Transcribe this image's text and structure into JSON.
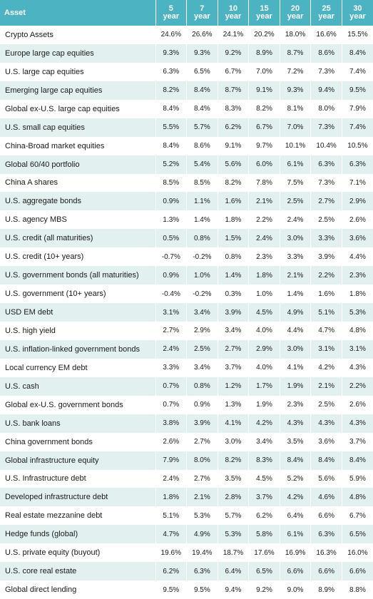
{
  "header": {
    "asset": "Asset",
    "columns": [
      {
        "num": "5",
        "unit": "year"
      },
      {
        "num": "7",
        "unit": "year"
      },
      {
        "num": "10",
        "unit": "year"
      },
      {
        "num": "15",
        "unit": "year"
      },
      {
        "num": "20",
        "unit": "year"
      },
      {
        "num": "25",
        "unit": "year"
      },
      {
        "num": "30",
        "unit": "year"
      }
    ]
  },
  "rows": [
    {
      "asset": "Crypto Assets",
      "values": [
        "24.6%",
        "26.6%",
        "24.1%",
        "20.2%",
        "18.0%",
        "16.6%",
        "15.5%"
      ]
    },
    {
      "asset": "Europe large cap equities",
      "values": [
        "9.3%",
        "9.3%",
        "9.2%",
        "8.9%",
        "8.7%",
        "8.6%",
        "8.4%"
      ]
    },
    {
      "asset": "U.S. large cap equities",
      "values": [
        "6.3%",
        "6.5%",
        "6.7%",
        "7.0%",
        "7.2%",
        "7.3%",
        "7.4%"
      ]
    },
    {
      "asset": "Emerging large cap equities",
      "values": [
        "8.2%",
        "8.4%",
        "8.7%",
        "9.1%",
        "9.3%",
        "9.4%",
        "9.5%"
      ]
    },
    {
      "asset": "Global ex-U.S. large cap equities",
      "values": [
        "8.4%",
        "8.4%",
        "8.3%",
        "8.2%",
        "8.1%",
        "8.0%",
        "7.9%"
      ]
    },
    {
      "asset": "U.S. small cap equities",
      "values": [
        "5.5%",
        "5.7%",
        "6.2%",
        "6.7%",
        "7.0%",
        "7.3%",
        "7.4%"
      ]
    },
    {
      "asset": "China-Broad market equities",
      "values": [
        "8.4%",
        "8.6%",
        "9.1%",
        "9.7%",
        "10.1%",
        "10.4%",
        "10.5%"
      ]
    },
    {
      "asset": "Global 60/40 portfolio",
      "values": [
        "5.2%",
        "5.4%",
        "5.6%",
        "6.0%",
        "6.1%",
        "6.3%",
        "6.3%"
      ]
    },
    {
      "asset": "China A shares",
      "values": [
        "8.5%",
        "8.5%",
        "8.2%",
        "7.8%",
        "7.5%",
        "7.3%",
        "7.1%"
      ]
    },
    {
      "asset": "U.S. aggregate bonds",
      "values": [
        "0.9%",
        "1.1%",
        "1.6%",
        "2.1%",
        "2.5%",
        "2.7%",
        "2.9%"
      ]
    },
    {
      "asset": "U.S. agency MBS",
      "values": [
        "1.3%",
        "1.4%",
        "1.8%",
        "2.2%",
        "2.4%",
        "2.5%",
        "2.6%"
      ]
    },
    {
      "asset": "U.S. credit (all maturities)",
      "values": [
        "0.5%",
        "0.8%",
        "1.5%",
        "2.4%",
        "3.0%",
        "3.3%",
        "3.6%"
      ]
    },
    {
      "asset": "U.S. credit (10+ years)",
      "values": [
        "-0.7%",
        "-0.2%",
        "0.8%",
        "2.3%",
        "3.3%",
        "3.9%",
        "4.4%"
      ]
    },
    {
      "asset": "U.S. government bonds (all maturities)",
      "values": [
        "0.9%",
        "1.0%",
        "1.4%",
        "1.8%",
        "2.1%",
        "2.2%",
        "2.3%"
      ]
    },
    {
      "asset": "U.S. government (10+ years)",
      "values": [
        "-0.4%",
        "-0.2%",
        "0.3%",
        "1.0%",
        "1.4%",
        "1.6%",
        "1.8%"
      ]
    },
    {
      "asset": "USD EM debt",
      "values": [
        "3.1%",
        "3.4%",
        "3.9%",
        "4.5%",
        "4.9%",
        "5.1%",
        "5.3%"
      ]
    },
    {
      "asset": "U.S. high yield",
      "values": [
        "2.7%",
        "2.9%",
        "3.4%",
        "4.0%",
        "4.4%",
        "4.7%",
        "4.8%"
      ]
    },
    {
      "asset": "U.S. inflation-linked government bonds",
      "values": [
        "2.4%",
        "2.5%",
        "2.7%",
        "2.9%",
        "3.0%",
        "3.1%",
        "3.1%"
      ]
    },
    {
      "asset": "Local currency EM debt",
      "values": [
        "3.3%",
        "3.4%",
        "3.7%",
        "4.0%",
        "4.1%",
        "4.2%",
        "4.3%"
      ]
    },
    {
      "asset": "U.S. cash",
      "values": [
        "0.7%",
        "0.8%",
        "1.2%",
        "1.7%",
        "1.9%",
        "2.1%",
        "2.2%"
      ]
    },
    {
      "asset": "Global ex-U.S. government bonds",
      "values": [
        "0.7%",
        "0.9%",
        "1.3%",
        "1.9%",
        "2.3%",
        "2.5%",
        "2.6%"
      ]
    },
    {
      "asset": "U.S. bank loans",
      "values": [
        "3.8%",
        "3.9%",
        "4.1%",
        "4.2%",
        "4.3%",
        "4.3%",
        "4.3%"
      ]
    },
    {
      "asset": "China government bonds",
      "values": [
        "2.6%",
        "2.7%",
        "3.0%",
        "3.4%",
        "3.5%",
        "3.6%",
        "3.7%"
      ]
    },
    {
      "asset": "Global infrastructure equity",
      "values": [
        "7.9%",
        "8.0%",
        "8.2%",
        "8.3%",
        "8.4%",
        "8.4%",
        "8.4%"
      ]
    },
    {
      "asset": "U.S. Infrastructure debt",
      "values": [
        "2.4%",
        "2.7%",
        "3.5%",
        "4.5%",
        "5.2%",
        "5.6%",
        "5.9%"
      ]
    },
    {
      "asset": "Developed infrastructure debt",
      "values": [
        "1.8%",
        "2.1%",
        "2.8%",
        "3.7%",
        "4.2%",
        "4.6%",
        "4.8%"
      ]
    },
    {
      "asset": "Real estate mezzanine debt",
      "values": [
        "5.1%",
        "5.3%",
        "5.7%",
        "6.2%",
        "6.4%",
        "6.6%",
        "6.7%"
      ]
    },
    {
      "asset": "Hedge funds (global)",
      "values": [
        "4.7%",
        "4.9%",
        "5.3%",
        "5.8%",
        "6.1%",
        "6.3%",
        "6.5%"
      ]
    },
    {
      "asset": "U.S. private equity (buyout)",
      "values": [
        "19.6%",
        "19.4%",
        "18.7%",
        "17.6%",
        "16.9%",
        "16.3%",
        "16.0%"
      ]
    },
    {
      "asset": "U.S. core real estate",
      "values": [
        "6.2%",
        "6.3%",
        "6.4%",
        "6.5%",
        "6.6%",
        "6.6%",
        "6.6%"
      ]
    },
    {
      "asset": "Global direct lending",
      "values": [
        "9.5%",
        "9.5%",
        "9.4%",
        "9.2%",
        "9.0%",
        "8.9%",
        "8.8%"
      ]
    }
  ]
}
